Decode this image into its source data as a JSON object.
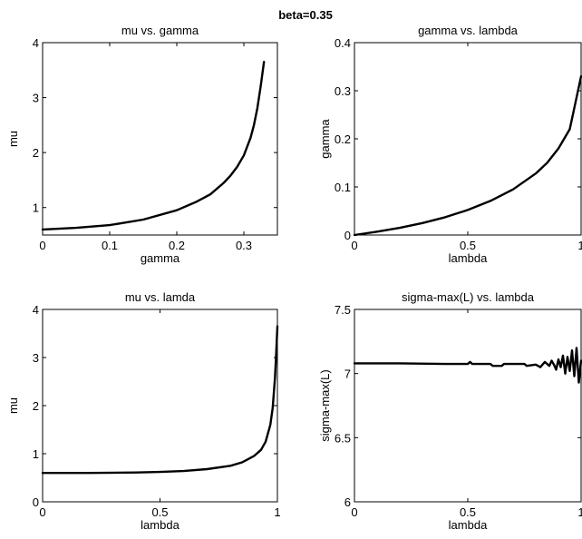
{
  "suptitle": "beta=0.35",
  "chart_data": [
    {
      "type": "line",
      "title": "mu vs. gamma",
      "xlabel": "gamma",
      "ylabel": "mu",
      "xlim": [
        0,
        0.35
      ],
      "ylim": [
        0.5,
        4
      ],
      "xticks": [
        0,
        0.1,
        0.2,
        0.3
      ],
      "xtick_labels": [
        "0",
        "0.1",
        "0.2",
        "0.3"
      ],
      "yticks": [
        1,
        2,
        3,
        4
      ],
      "ytick_labels": [
        "1",
        "2",
        "3",
        "4"
      ],
      "series": [
        {
          "x": [
            0,
            0.05,
            0.1,
            0.15,
            0.2,
            0.23,
            0.25,
            0.27,
            0.28,
            0.29,
            0.3,
            0.31,
            0.315,
            0.32,
            0.325,
            0.33
          ],
          "y": [
            0.6,
            0.63,
            0.68,
            0.78,
            0.95,
            1.11,
            1.24,
            1.45,
            1.58,
            1.74,
            1.95,
            2.27,
            2.5,
            2.8,
            3.2,
            3.65
          ]
        }
      ]
    },
    {
      "type": "line",
      "title": "gamma vs. lambda",
      "xlabel": "lambda",
      "ylabel": "gamma",
      "xlim": [
        0,
        1
      ],
      "ylim": [
        0,
        0.4
      ],
      "xticks": [
        0,
        0.5,
        1
      ],
      "xtick_labels": [
        "0",
        "0.5",
        "1"
      ],
      "yticks": [
        0,
        0.1,
        0.2,
        0.3,
        0.4
      ],
      "ytick_labels": [
        "0",
        "0.1",
        "0.2",
        "0.3",
        "0.4"
      ],
      "series": [
        {
          "x": [
            0,
            0.1,
            0.2,
            0.3,
            0.4,
            0.5,
            0.6,
            0.7,
            0.8,
            0.85,
            0.9,
            0.95,
            1.0
          ],
          "y": [
            0,
            0.007,
            0.015,
            0.025,
            0.037,
            0.052,
            0.071,
            0.095,
            0.128,
            0.15,
            0.18,
            0.22,
            0.33
          ]
        }
      ]
    },
    {
      "type": "line",
      "title": "mu vs. lamda",
      "xlabel": "lambda",
      "ylabel": "mu",
      "xlim": [
        0,
        1
      ],
      "ylim": [
        0,
        4
      ],
      "xticks": [
        0,
        0.5,
        1
      ],
      "xtick_labels": [
        "0",
        "0.5",
        "1"
      ],
      "yticks": [
        0,
        1,
        2,
        3,
        4
      ],
      "ytick_labels": [
        "0",
        "1",
        "2",
        "3",
        "4"
      ],
      "series": [
        {
          "x": [
            0,
            0.2,
            0.4,
            0.5,
            0.6,
            0.7,
            0.8,
            0.85,
            0.9,
            0.93,
            0.95,
            0.97,
            0.98,
            0.99,
            0.995,
            1.0
          ],
          "y": [
            0.6,
            0.6,
            0.61,
            0.62,
            0.64,
            0.68,
            0.75,
            0.82,
            0.95,
            1.08,
            1.25,
            1.6,
            1.95,
            2.6,
            3.1,
            3.65
          ]
        }
      ]
    },
    {
      "type": "line",
      "title": "sigma-max(L) vs. lambda",
      "xlabel": "lambda",
      "ylabel": "sigma-max(L)",
      "xlim": [
        0,
        1
      ],
      "ylim": [
        6,
        7.5
      ],
      "xticks": [
        0,
        0.5,
        1
      ],
      "xtick_labels": [
        "0",
        "0.5",
        "1"
      ],
      "yticks": [
        6,
        6.5,
        7,
        7.5
      ],
      "ytick_labels": [
        "6",
        "6.5",
        "7",
        "7.5"
      ],
      "series": [
        {
          "x": [
            0,
            0.2,
            0.4,
            0.5,
            0.51,
            0.52,
            0.6,
            0.61,
            0.65,
            0.66,
            0.75,
            0.76,
            0.8,
            0.82,
            0.84,
            0.86,
            0.87,
            0.88,
            0.89,
            0.9,
            0.91,
            0.92,
            0.93,
            0.94,
            0.95,
            0.96,
            0.97,
            0.98,
            0.99,
            1.0
          ],
          "y": [
            7.08,
            7.08,
            7.075,
            7.075,
            7.09,
            7.075,
            7.075,
            7.06,
            7.06,
            7.075,
            7.075,
            7.06,
            7.07,
            7.05,
            7.09,
            7.06,
            7.1,
            7.07,
            7.03,
            7.11,
            7.05,
            7.14,
            7.0,
            7.13,
            7.02,
            7.18,
            6.98,
            7.2,
            6.93,
            7.1
          ]
        }
      ]
    }
  ]
}
